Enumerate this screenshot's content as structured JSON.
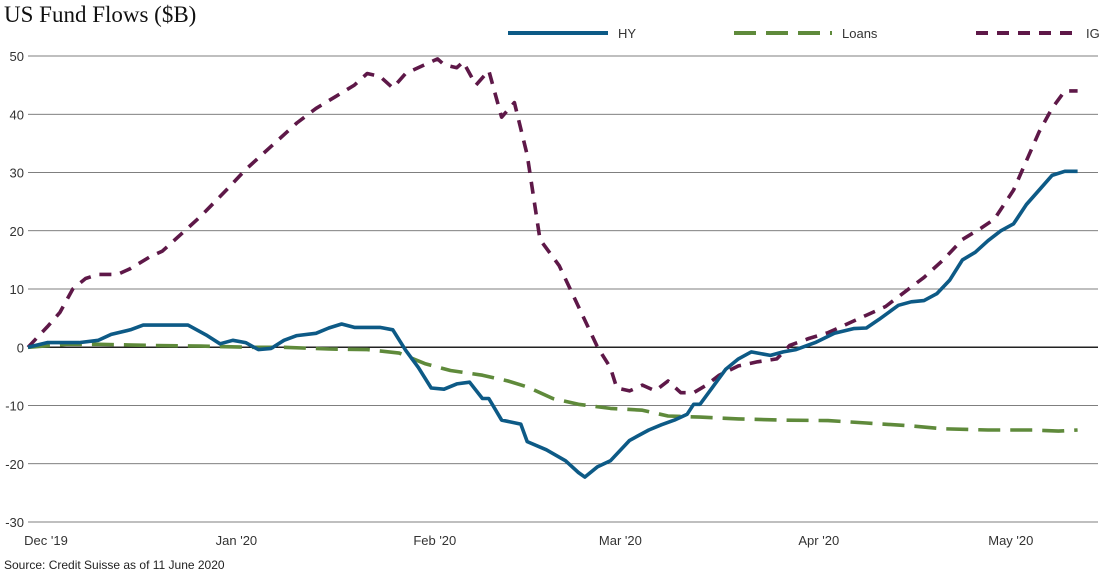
{
  "title": "US Fund Flows ($B)",
  "source": "Source: Credit Suisse as of 11 June 2020",
  "colors": {
    "HY": "#0d5a86",
    "Loans": "#5f8a3b",
    "IG": "#5e1848",
    "grid": "#555555",
    "zero": "#222222"
  },
  "chart_data": {
    "type": "line",
    "title": "US Fund Flows ($B)",
    "ylim": [
      -30,
      50
    ],
    "yticks": [
      -30,
      -20,
      -10,
      0,
      10,
      20,
      30,
      40,
      50
    ],
    "xlim": [
      "2019-12-01",
      "2020-06-11"
    ],
    "xticks": [
      {
        "label": "Dec '19",
        "date": "2019-12-01"
      },
      {
        "label": "Jan '20",
        "date": "2020-01-01"
      },
      {
        "label": "Feb '20",
        "date": "2020-02-01"
      },
      {
        "label": "Mar '20",
        "date": "2020-03-01"
      },
      {
        "label": "Apr '20",
        "date": "2020-04-01"
      },
      {
        "label": "May '20",
        "date": "2020-05-01"
      }
    ],
    "grid": true,
    "legend": "top-right",
    "series": [
      {
        "name": "HY",
        "style": "solid",
        "points": [
          [
            "2019-12-01",
            0
          ],
          [
            "2019-12-04",
            0.8
          ],
          [
            "2019-12-09",
            0.8
          ],
          [
            "2019-12-12",
            1.2
          ],
          [
            "2019-12-14",
            2.2
          ],
          [
            "2019-12-17",
            3.0
          ],
          [
            "2019-12-19",
            3.8
          ],
          [
            "2019-12-24",
            3.8
          ],
          [
            "2019-12-26",
            3.8
          ],
          [
            "2019-12-29",
            2.0
          ],
          [
            "2019-12-31",
            0.6
          ],
          [
            "2020-01-02",
            1.2
          ],
          [
            "2020-01-04",
            0.8
          ],
          [
            "2020-01-06",
            -0.4
          ],
          [
            "2020-01-08",
            -0.2
          ],
          [
            "2020-01-10",
            1.2
          ],
          [
            "2020-01-12",
            2.0
          ],
          [
            "2020-01-15",
            2.4
          ],
          [
            "2020-01-17",
            3.3
          ],
          [
            "2020-01-19",
            4.0
          ],
          [
            "2020-01-21",
            3.4
          ],
          [
            "2020-01-25",
            3.4
          ],
          [
            "2020-01-27",
            3.0
          ],
          [
            "2020-01-29",
            -0.5
          ],
          [
            "2020-01-31",
            -3.5
          ],
          [
            "2020-02-02",
            -7.0
          ],
          [
            "2020-02-04",
            -7.2
          ],
          [
            "2020-02-06",
            -6.3
          ],
          [
            "2020-02-08",
            -6.0
          ],
          [
            "2020-02-10",
            -8.8
          ],
          [
            "2020-02-11",
            -8.8
          ],
          [
            "2020-02-13",
            -12.5
          ],
          [
            "2020-02-16",
            -13.2
          ],
          [
            "2020-02-17",
            -16.2
          ],
          [
            "2020-02-20",
            -17.6
          ],
          [
            "2020-02-23",
            -19.5
          ],
          [
            "2020-02-25",
            -21.5
          ],
          [
            "2020-02-26",
            -22.3
          ],
          [
            "2020-02-28",
            -20.5
          ],
          [
            "2020-03-01",
            -19.5
          ],
          [
            "2020-03-04",
            -16.0
          ],
          [
            "2020-03-07",
            -14.2
          ],
          [
            "2020-03-09",
            -13.3
          ],
          [
            "2020-03-11",
            -12.5
          ],
          [
            "2020-03-13",
            -11.5
          ],
          [
            "2020-03-14",
            -9.8
          ],
          [
            "2020-03-15",
            -9.8
          ],
          [
            "2020-03-17",
            -6.8
          ],
          [
            "2020-03-19",
            -3.8
          ],
          [
            "2020-03-21",
            -2.0
          ],
          [
            "2020-03-23",
            -0.8
          ],
          [
            "2020-03-26",
            -1.4
          ],
          [
            "2020-03-28",
            -0.8
          ],
          [
            "2020-03-30",
            -0.4
          ],
          [
            "2020-04-02",
            0.8
          ],
          [
            "2020-04-05",
            2.4
          ],
          [
            "2020-04-08",
            3.2
          ],
          [
            "2020-04-10",
            3.3
          ],
          [
            "2020-04-12",
            4.8
          ],
          [
            "2020-04-15",
            7.2
          ],
          [
            "2020-04-17",
            7.8
          ],
          [
            "2020-04-19",
            8.0
          ],
          [
            "2020-04-21",
            9.2
          ],
          [
            "2020-04-23",
            11.5
          ],
          [
            "2020-04-25",
            15.0
          ],
          [
            "2020-04-27",
            16.3
          ],
          [
            "2020-04-29",
            18.3
          ],
          [
            "2020-05-01",
            20.0
          ],
          [
            "2020-05-03",
            21.2
          ],
          [
            "2020-05-05",
            24.5
          ],
          [
            "2020-05-07",
            27.0
          ],
          [
            "2020-05-09",
            29.5
          ],
          [
            "2020-05-11",
            30.2
          ],
          [
            "2020-05-13",
            30.2
          ]
        ]
      },
      {
        "name": "Loans",
        "style": "dashed",
        "points": [
          [
            "2019-12-01",
            0
          ],
          [
            "2019-12-07",
            0.5
          ],
          [
            "2019-12-12",
            0.5
          ],
          [
            "2019-12-21",
            0.3
          ],
          [
            "2019-12-28",
            0.2
          ],
          [
            "2020-01-05",
            0
          ],
          [
            "2020-01-10",
            0
          ],
          [
            "2020-01-17",
            -0.3
          ],
          [
            "2020-01-23",
            -0.4
          ],
          [
            "2020-01-28",
            -1.0
          ],
          [
            "2020-02-01",
            -2.8
          ],
          [
            "2020-02-05",
            -4.0
          ],
          [
            "2020-02-10",
            -4.8
          ],
          [
            "2020-02-14",
            -5.8
          ],
          [
            "2020-02-17",
            -6.8
          ],
          [
            "2020-02-21",
            -8.8
          ],
          [
            "2020-02-25",
            -9.8
          ],
          [
            "2020-03-01",
            -10.5
          ],
          [
            "2020-03-06",
            -10.8
          ],
          [
            "2020-03-10",
            -11.8
          ],
          [
            "2020-03-15",
            -12.0
          ],
          [
            "2020-03-21",
            -12.3
          ],
          [
            "2020-03-28",
            -12.5
          ],
          [
            "2020-04-04",
            -12.6
          ],
          [
            "2020-04-10",
            -13.0
          ],
          [
            "2020-04-17",
            -13.5
          ],
          [
            "2020-04-22",
            -14.0
          ],
          [
            "2020-04-29",
            -14.2
          ],
          [
            "2020-05-06",
            -14.2
          ],
          [
            "2020-05-10",
            -14.4
          ],
          [
            "2020-05-13",
            -14.2
          ]
        ]
      },
      {
        "name": "IG",
        "style": "dashed",
        "points": [
          [
            "2019-12-01",
            0
          ],
          [
            "2019-12-04",
            3.5
          ],
          [
            "2019-12-06",
            6.0
          ],
          [
            "2019-12-08",
            10.0
          ],
          [
            "2019-12-10",
            11.8
          ],
          [
            "2019-12-12",
            12.5
          ],
          [
            "2019-12-15",
            12.5
          ],
          [
            "2019-12-17",
            13.5
          ],
          [
            "2019-12-20",
            15.5
          ],
          [
            "2019-12-22",
            16.5
          ],
          [
            "2019-12-25",
            19.5
          ],
          [
            "2019-12-28",
            22.5
          ],
          [
            "2020-01-01",
            27.0
          ],
          [
            "2020-01-04",
            30.5
          ],
          [
            "2020-01-08",
            34.5
          ],
          [
            "2020-01-12",
            38.5
          ],
          [
            "2020-01-15",
            41.0
          ],
          [
            "2020-01-18",
            43.0
          ],
          [
            "2020-01-21",
            45.0
          ],
          [
            "2020-01-23",
            47.0
          ],
          [
            "2020-01-25",
            46.5
          ],
          [
            "2020-01-27",
            44.5
          ],
          [
            "2020-01-29",
            47.0
          ],
          [
            "2020-02-01",
            48.5
          ],
          [
            "2020-02-03",
            49.5
          ],
          [
            "2020-02-04",
            48.5
          ],
          [
            "2020-02-06",
            48.0
          ],
          [
            "2020-02-07",
            49.0
          ],
          [
            "2020-02-09",
            45.0
          ],
          [
            "2020-02-11",
            47.5
          ],
          [
            "2020-02-13",
            39.5
          ],
          [
            "2020-02-15",
            42.0
          ],
          [
            "2020-02-17",
            33.0
          ],
          [
            "2020-02-19",
            18.5
          ],
          [
            "2020-02-22",
            14.0
          ],
          [
            "2020-02-25",
            7.0
          ],
          [
            "2020-02-28",
            0.0
          ],
          [
            "2020-03-01",
            -3.5
          ],
          [
            "2020-03-02",
            -7.0
          ],
          [
            "2020-03-04",
            -7.5
          ],
          [
            "2020-03-06",
            -6.5
          ],
          [
            "2020-03-08",
            -7.5
          ],
          [
            "2020-03-10",
            -5.8
          ],
          [
            "2020-03-12",
            -7.8
          ],
          [
            "2020-03-14",
            -7.8
          ],
          [
            "2020-03-16",
            -6.5
          ],
          [
            "2020-03-18",
            -4.8
          ],
          [
            "2020-03-21",
            -3.2
          ],
          [
            "2020-03-24",
            -2.5
          ],
          [
            "2020-03-27",
            -2.0
          ],
          [
            "2020-03-29",
            0.3
          ],
          [
            "2020-04-01",
            1.5
          ],
          [
            "2020-04-04",
            2.5
          ],
          [
            "2020-04-06",
            3.5
          ],
          [
            "2020-04-10",
            5.5
          ],
          [
            "2020-04-13",
            7.0
          ],
          [
            "2020-04-16",
            9.5
          ],
          [
            "2020-04-19",
            12.0
          ],
          [
            "2020-04-22",
            15.0
          ],
          [
            "2020-04-25",
            18.5
          ],
          [
            "2020-04-28",
            20.5
          ],
          [
            "2020-04-30",
            22.0
          ],
          [
            "2020-05-03",
            27.0
          ],
          [
            "2020-05-05",
            32.0
          ],
          [
            "2020-05-07",
            37.0
          ],
          [
            "2020-05-09",
            41.0
          ],
          [
            "2020-05-11",
            44.0
          ],
          [
            "2020-05-13",
            44.0
          ]
        ]
      }
    ]
  }
}
